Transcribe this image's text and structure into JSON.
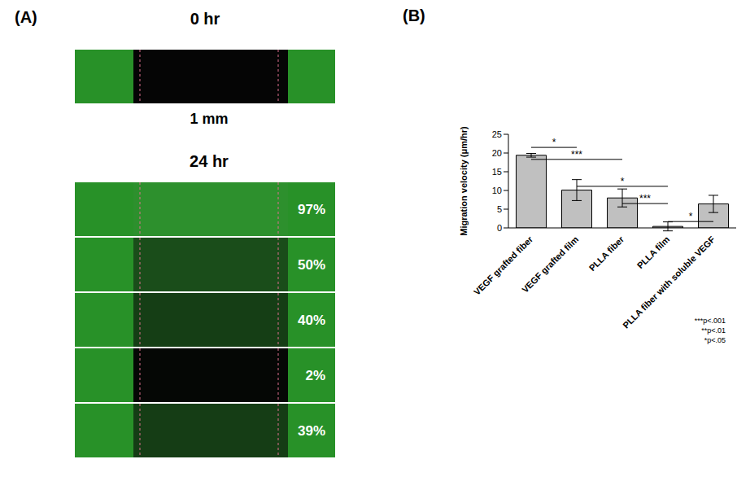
{
  "panel_labels": [
    "(A)",
    "(B)"
  ],
  "panel_a": {
    "top_title": "0 hr",
    "scale_label": "1 mm",
    "bottom_title": "24 hr",
    "closure": [
      {
        "value": 97,
        "label": "97%"
      },
      {
        "value": 50,
        "label": "50%"
      },
      {
        "value": 40,
        "label": "40%"
      },
      {
        "value": 2,
        "label": "2%"
      },
      {
        "value": 39,
        "label": "39%"
      }
    ]
  },
  "chart_data": {
    "type": "bar",
    "categories": [
      "VEGF grafted fiber",
      "VEGF grafted film",
      "PLLA fiber",
      "PLLA film",
      "PLLA fiber with soluble VEGF"
    ],
    "values": [
      19.4,
      10.1,
      8.0,
      0.4,
      6.4
    ],
    "errors": [
      0.5,
      2.8,
      2.4,
      1.2,
      2.3
    ],
    "color": "#c0c0c0",
    "y_label": "Migration velocity (μm/hr)",
    "ylim": [
      0,
      25
    ],
    "yticks": [
      0,
      5,
      10,
      15,
      20,
      25
    ],
    "annotations": [
      {
        "from": 0,
        "to": 1,
        "y": 21.5,
        "text": "*"
      },
      {
        "from": 0,
        "to": 2,
        "y": 18.3,
        "text": "***"
      },
      {
        "from": 1,
        "to": 3,
        "y": 11.1,
        "text": "*"
      },
      {
        "from": 2,
        "to": 3,
        "y": 6.5,
        "text": "***"
      },
      {
        "from": 3,
        "to": 4,
        "y": 1.7,
        "text": "*"
      }
    ],
    "notes": [
      "***p<.001",
      "**p<.01",
      "*p<.05"
    ]
  }
}
